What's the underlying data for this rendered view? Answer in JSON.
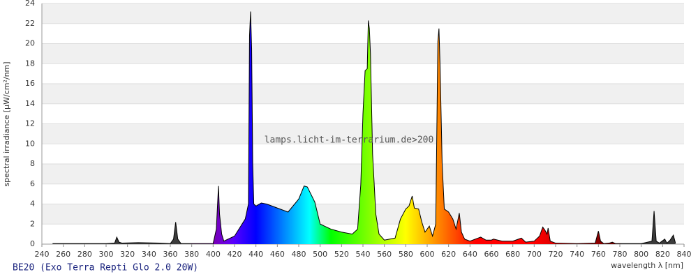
{
  "chart_data": {
    "type": "area",
    "title": "BE20 (Exo Terra Repti Glo 2.0 20W)",
    "annotation": "lamps.licht-im-terrarium.de>200",
    "x_label": "wavelength λ [nm]",
    "y_label": "spectral irradiance [µW/cm²/nm]",
    "color": "#000000",
    "grid": true,
    "xlim": [
      240,
      840
    ],
    "xticks": [
      240,
      260,
      280,
      300,
      320,
      340,
      360,
      380,
      400,
      420,
      440,
      460,
      480,
      500,
      520,
      540,
      560,
      580,
      600,
      620,
      640,
      660,
      680,
      700,
      720,
      740,
      760,
      780,
      800,
      820,
      840
    ],
    "ylim": [
      0,
      24
    ],
    "yticks": [
      0,
      2,
      4,
      6,
      8,
      10,
      12,
      14,
      16,
      18,
      20,
      22,
      24
    ],
    "x": [
      250,
      300,
      308,
      310,
      312,
      315,
      330,
      350,
      360,
      363,
      365,
      367,
      370,
      400,
      403,
      405,
      406,
      408,
      410,
      420,
      430,
      433,
      434,
      435,
      436,
      437,
      438,
      440,
      445,
      450,
      460,
      470,
      480,
      485,
      488,
      495,
      500,
      510,
      520,
      530,
      535,
      538,
      540,
      542,
      544,
      545,
      546,
      547,
      549,
      552,
      555,
      560,
      570,
      575,
      580,
      583,
      586,
      588,
      592,
      595,
      598,
      602,
      605,
      608,
      610,
      611,
      612,
      614,
      616,
      620,
      624,
      627,
      630,
      632,
      635,
      640,
      650,
      655,
      660,
      662,
      670,
      680,
      688,
      692,
      700,
      705,
      708,
      710,
      712,
      713,
      715,
      720,
      740,
      757,
      760,
      762,
      765,
      770,
      773,
      776,
      800,
      810,
      812,
      814,
      817,
      822,
      824,
      827,
      830,
      832
    ],
    "values": [
      0.05,
      0.05,
      0.1,
      0.7,
      0.2,
      0.1,
      0.15,
      0.1,
      0.05,
      0.5,
      2.2,
      0.5,
      0.05,
      0.05,
      1.5,
      5.8,
      3.0,
      1.0,
      0.3,
      0.8,
      2.5,
      4,
      20.8,
      23.2,
      19.5,
      8,
      4,
      3.8,
      4.1,
      4.0,
      3.6,
      3.2,
      4.5,
      5.8,
      5.7,
      4.2,
      2.0,
      1.5,
      1.2,
      1.0,
      1.5,
      6,
      13,
      17.3,
      17.5,
      22.3,
      21.5,
      19,
      9,
      3,
      1,
      0.4,
      0.6,
      2.5,
      3.5,
      3.8,
      4.8,
      3.6,
      3.5,
      2.2,
      1.2,
      1.8,
      0.8,
      2.0,
      20.2,
      21.5,
      18,
      8,
      3.5,
      3.2,
      2.5,
      1.5,
      3.1,
      1.2,
      0.5,
      0.3,
      0.7,
      0.4,
      0.4,
      0.5,
      0.3,
      0.3,
      0.6,
      0.2,
      0.3,
      0.8,
      1.7,
      1.4,
      1.0,
      1.6,
      0.3,
      0.1,
      0.05,
      0.1,
      1.3,
      0.3,
      0.05,
      0.1,
      0.2,
      0.05,
      0.05,
      0.3,
      3.3,
      0.3,
      0.1,
      0.5,
      0.1,
      0.4,
      0.9,
      0.1
    ]
  }
}
